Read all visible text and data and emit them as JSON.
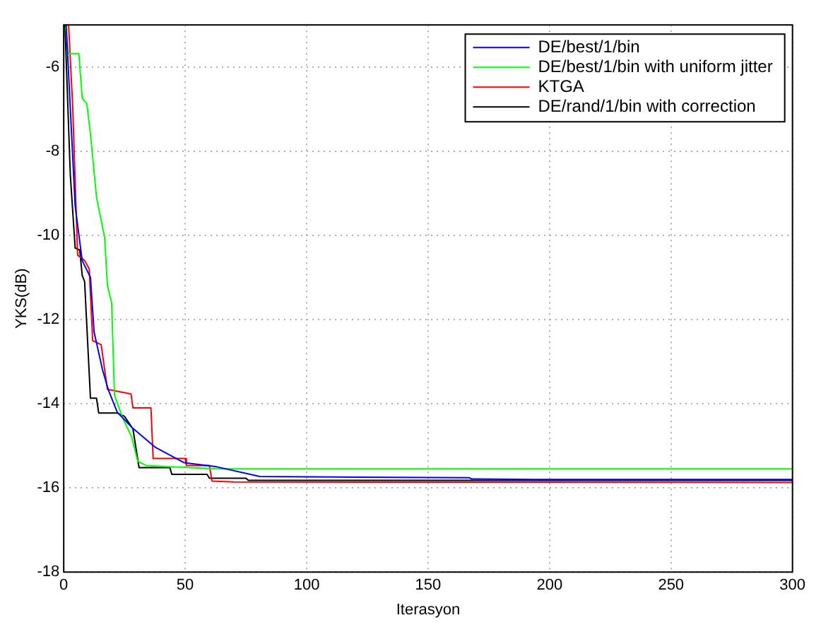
{
  "chart_data": {
    "type": "line",
    "xlabel": "Iterasyon",
    "ylabel": "YKS(dB)",
    "xlim": [
      0,
      300
    ],
    "ylim": [
      -18,
      -5
    ],
    "xticks": [
      0,
      50,
      100,
      150,
      200,
      250,
      300
    ],
    "yticks": [
      -18,
      -16,
      -14,
      -12,
      -10,
      -8,
      -6
    ],
    "grid": true,
    "legend": "top right",
    "marker": "none",
    "line_style": "solid",
    "series": [
      {
        "name": "DE/best/1/bin",
        "color": "#0000ff",
        "x": [
          1,
          4.7,
          7.6,
          11,
          12.5,
          16,
          18.3,
          22,
          28,
          37.8,
          49.5,
          63,
          80.7,
          167,
          168,
          194,
          300
        ],
        "values": [
          -5,
          -9.3,
          -10.6,
          -11,
          -12.3,
          -13.2,
          -13.66,
          -14.2,
          -14.56,
          -15.04,
          -15.4,
          -15.5,
          -15.73,
          -15.76,
          -15.79,
          -15.8,
          -15.8
        ]
      },
      {
        "name": "DE/best/1/bin with uniform jitter",
        "color": "#00ff00",
        "x": [
          0.8,
          1.8,
          6.2,
          7.6,
          9.5,
          11,
          13.5,
          16.8,
          18,
          19.7,
          20.9,
          24,
          28,
          30.4,
          34,
          63,
          300
        ],
        "values": [
          -5.04,
          -5.68,
          -5.68,
          -6.74,
          -6.87,
          -7.6,
          -9.1,
          -10.04,
          -11.2,
          -11.6,
          -13.8,
          -14.3,
          -14.8,
          -15.36,
          -15.47,
          -15.55,
          -15.55
        ]
      },
      {
        "name": "KTGA",
        "color": "#ff0000",
        "x": [
          2,
          3.7,
          5.7,
          8.6,
          10.5,
          11.9,
          15.4,
          18,
          27.7,
          28.5,
          35.9,
          36.8,
          50,
          50.5,
          60,
          61,
          70,
          300
        ],
        "values": [
          -5,
          -6.96,
          -10.47,
          -10.6,
          -10.8,
          -12.5,
          -12.6,
          -13.66,
          -13.77,
          -14.1,
          -14.1,
          -15.3,
          -15.3,
          -15.47,
          -15.47,
          -15.84,
          -15.86,
          -15.87
        ]
      },
      {
        "name": "DE/rand/1/bin with correction",
        "color": "#000000",
        "x": [
          0.5,
          2.7,
          4.7,
          6.6,
          7.6,
          8.6,
          11,
          13.5,
          14.4,
          22,
          25,
          28.5,
          31,
          43.7,
          44.5,
          59,
          60,
          75,
          76,
          300
        ],
        "values": [
          -5,
          -8.55,
          -10.3,
          -10.35,
          -10.95,
          -11.1,
          -13.87,
          -13.87,
          -14.22,
          -14.22,
          -14.3,
          -14.6,
          -15.52,
          -15.52,
          -15.68,
          -15.68,
          -15.77,
          -15.77,
          -15.82,
          -15.82
        ]
      }
    ]
  }
}
